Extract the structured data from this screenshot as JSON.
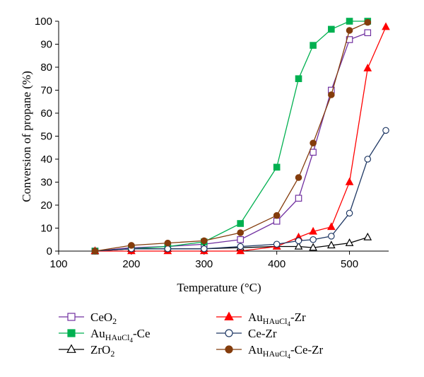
{
  "chart_data": {
    "type": "line",
    "xlabel": "Temperature (°C)",
    "ylabel": "Conversion of propane (%)",
    "xlim": [
      100,
      550
    ],
    "ylim": [
      0,
      100
    ],
    "xticks": [
      100,
      200,
      300,
      400,
      500
    ],
    "yticks": [
      0,
      10,
      20,
      30,
      40,
      50,
      60,
      70,
      80,
      90,
      100
    ],
    "grid": false,
    "legend_position": "bottom",
    "series": [
      {
        "name": "CeO2",
        "name_parts": [
          {
            "t": "CeO"
          },
          {
            "t": "2",
            "sub": true
          }
        ],
        "color": "#7030a0",
        "marker": "square-open",
        "x": [
          150,
          200,
          250,
          300,
          350,
          400,
          430,
          450,
          475,
          500,
          525
        ],
        "y": [
          0,
          1.5,
          2,
          3,
          5,
          13,
          23,
          43,
          70,
          92,
          95
        ]
      },
      {
        "name": "AuHAuCl4-Ce",
        "name_parts": [
          {
            "t": "Au"
          },
          {
            "t": "HAuCl",
            "sub": true
          },
          {
            "t": "4",
            "subsub": true
          },
          {
            "t": "-Ce"
          }
        ],
        "color": "#00b050",
        "marker": "square-filled",
        "x": [
          150,
          200,
          250,
          300,
          350,
          400,
          430,
          450,
          475,
          500,
          525
        ],
        "y": [
          0,
          1,
          2,
          4,
          12,
          36.5,
          75,
          89.5,
          96.5,
          100,
          100
        ]
      },
      {
        "name": "ZrO2",
        "name_parts": [
          {
            "t": "ZrO"
          },
          {
            "t": "2",
            "sub": true
          }
        ],
        "color": "#000000",
        "marker": "triangle-open",
        "x": [
          150,
          200,
          250,
          300,
          350,
          400,
          430,
          450,
          475,
          500,
          525
        ],
        "y": [
          0,
          1,
          1,
          1,
          1.5,
          2,
          2,
          1.5,
          2.5,
          3.5,
          6
        ]
      },
      {
        "name": "AuHAuCl4-Zr",
        "name_parts": [
          {
            "t": "Au"
          },
          {
            "t": "HAuCl",
            "sub": true
          },
          {
            "t": "4",
            "subsub": true
          },
          {
            "t": "-Zr"
          }
        ],
        "color": "#ff0000",
        "marker": "triangle-filled",
        "x": [
          150,
          200,
          250,
          300,
          350,
          400,
          430,
          450,
          475,
          500,
          525,
          550
        ],
        "y": [
          0,
          0,
          0,
          0,
          0,
          2,
          6,
          8.5,
          10.5,
          30,
          79.5,
          97.5
        ]
      },
      {
        "name": "Ce-Zr",
        "name_parts": [
          {
            "t": "Ce-Zr"
          }
        ],
        "color": "#1f3864",
        "marker": "circle-open",
        "x": [
          150,
          200,
          250,
          300,
          350,
          400,
          430,
          450,
          475,
          500,
          525,
          550
        ],
        "y": [
          0,
          1,
          1,
          1,
          2,
          3,
          4.5,
          5,
          6.5,
          16.5,
          40,
          52.5
        ]
      },
      {
        "name": "AuHAuCl4-Ce-Zr",
        "name_parts": [
          {
            "t": "Au"
          },
          {
            "t": "HAuCl",
            "sub": true
          },
          {
            "t": "4",
            "subsub": true
          },
          {
            "t": "-Ce-Zr"
          }
        ],
        "color": "#843c0c",
        "marker": "circle-filled",
        "x": [
          150,
          200,
          250,
          300,
          350,
          400,
          430,
          450,
          475,
          500,
          525
        ],
        "y": [
          0,
          2.5,
          3.5,
          4.5,
          8,
          15.5,
          32,
          47,
          68,
          96,
          99.5
        ]
      }
    ]
  }
}
